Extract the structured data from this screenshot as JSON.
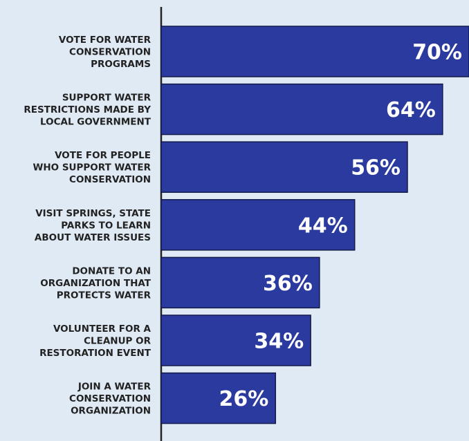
{
  "chart_data": {
    "type": "bar",
    "orientation": "horizontal",
    "categories": [
      [
        "VOTE FOR WATER",
        "CONSERVATION",
        "PROGRAMS"
      ],
      [
        "SUPPORT WATER",
        "RESTRICTIONS MADE BY",
        "LOCAL GOVERNMENT"
      ],
      [
        "VOTE FOR PEOPLE",
        "WHO SUPPORT WATER",
        "CONSERVATION"
      ],
      [
        "VISIT SPRINGS, STATE",
        "PARKS TO LEARN",
        "ABOUT WATER ISSUES"
      ],
      [
        "DONATE TO AN",
        "ORGANIZATION THAT",
        "PROTECTS WATER"
      ],
      [
        "VOLUNTEER FOR A",
        "CLEANUP OR",
        "RESTORATION EVENT"
      ],
      [
        "JOIN A WATER",
        "CONSERVATION",
        "ORGANIZATION"
      ]
    ],
    "values": [
      70,
      64,
      56,
      44,
      36,
      34,
      26
    ],
    "value_labels": [
      "70%",
      "64%",
      "56%",
      "44%",
      "36%",
      "34%",
      "26%"
    ],
    "unit": "%",
    "xlim": [
      0,
      70
    ],
    "grid": false,
    "legend": "none",
    "colors": {
      "background": "#e0eaf4",
      "bar": "#2b3a9e",
      "bar_border": "#141a4a",
      "axis": "#222222",
      "label": "#222222",
      "value_text": "#ffffff"
    }
  }
}
